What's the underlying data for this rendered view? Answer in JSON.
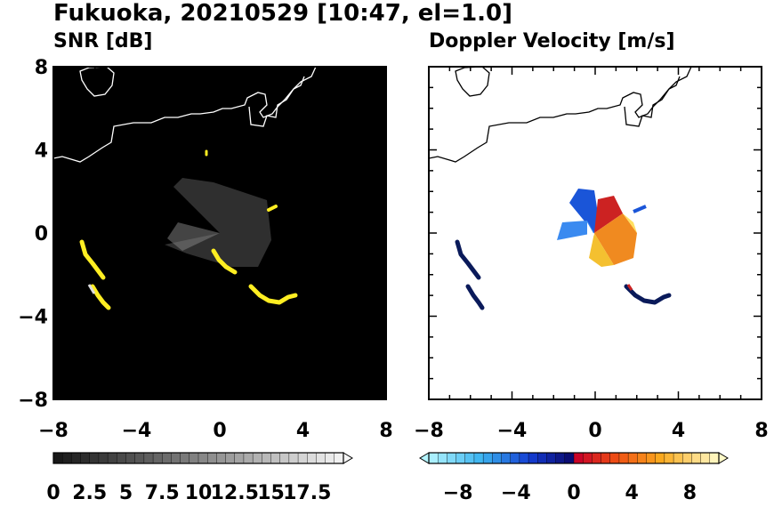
{
  "title": "Fukuoka, 20210529 [10:47, el=1.0]",
  "panels": {
    "left": {
      "title": "SNR [dB]"
    },
    "right": {
      "title": "Doppler Velocity [m/s]"
    }
  },
  "colors": {
    "snr_background": "#000000",
    "coastline_on_dark": "#ffffff",
    "coastline_on_light": "#000000",
    "snr_highlight": "#ffee22",
    "doppler_clutter": "#0a1a5a"
  },
  "chart_data": [
    {
      "type": "heatmap",
      "title": "SNR [dB]",
      "xlim": [
        -8,
        8
      ],
      "ylim": [
        -8,
        8
      ],
      "xticks": [
        -8,
        -4,
        0,
        4,
        8
      ],
      "yticks": [
        -8,
        -4,
        0,
        4,
        8
      ],
      "colorbar": {
        "range": [
          0,
          20
        ],
        "tick_values": [
          0,
          2.5,
          5,
          7.5,
          10,
          12.5,
          15,
          17.5
        ],
        "tick_labels": [
          "0",
          "2.5",
          "5",
          "7.5",
          "10",
          "12.5",
          "15",
          "17.5"
        ],
        "extend": "max",
        "colormap": "grayscale"
      }
    },
    {
      "type": "heatmap",
      "title": "Doppler Velocity [m/s]",
      "xlim": [
        -8,
        8
      ],
      "ylim": [
        -8,
        8
      ],
      "xticks": [
        -8,
        -4,
        0,
        4,
        8
      ],
      "yticks": [
        -8,
        -4,
        0,
        4,
        8
      ],
      "colorbar": {
        "range": [
          -10,
          10
        ],
        "tick_values": [
          -8,
          -4,
          0,
          4,
          8
        ],
        "tick_labels": [
          "−8",
          "−4",
          "0",
          "4",
          "8"
        ],
        "extend": "both",
        "colormap": "blue-white-red-yellow"
      }
    }
  ]
}
